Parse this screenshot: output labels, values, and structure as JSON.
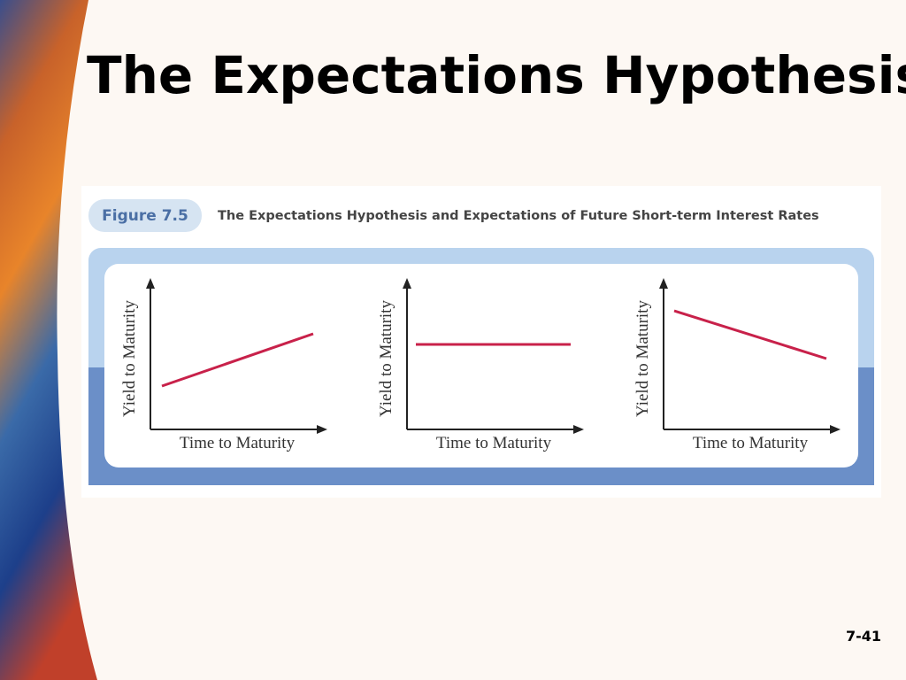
{
  "title": "The Expectations Hypothesis",
  "figure": {
    "label": "Figure 7.5",
    "caption": "The Expectations Hypothesis and Expectations of Future Short-term Interest Rates",
    "panels": [
      {
        "y_label": "Yield to Maturity",
        "x_label": "Time to Maturity"
      },
      {
        "y_label": "Yield to Maturity",
        "x_label": "Time to Maturity"
      },
      {
        "y_label": "Yield to Maturity",
        "x_label": "Time to Maturity"
      }
    ]
  },
  "page_number": "7-41"
}
